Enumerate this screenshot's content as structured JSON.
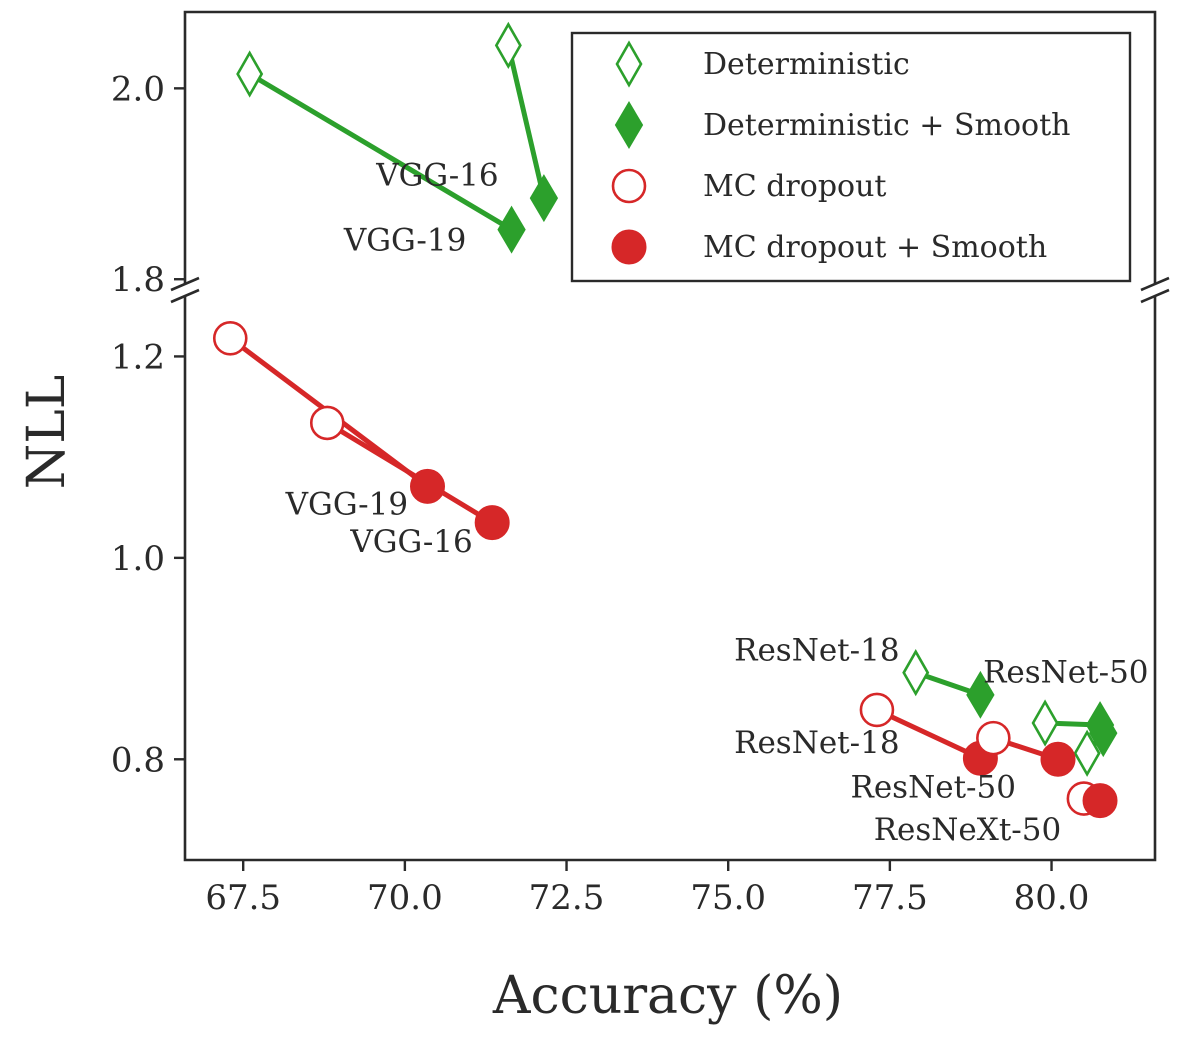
{
  "chart_data": {
    "type": "line",
    "xlabel": "Accuracy (%)",
    "ylabel": "NLL",
    "xlim": [
      66.6,
      81.6
    ],
    "ylim_top": [
      1.795,
      2.08
    ],
    "ylim_bottom": [
      0.7,
      1.26
    ],
    "xticks": [
      67.5,
      70.0,
      72.5,
      75.0,
      77.5,
      80.0
    ],
    "xtick_labels": [
      "67.5",
      "70.0",
      "72.5",
      "75.0",
      "77.5",
      "80.0"
    ],
    "yticks_top": [
      1.8,
      2.0
    ],
    "ytick_labels_top": [
      "1.8",
      "2.0"
    ],
    "yticks_bottom": [
      0.8,
      1.0,
      1.2
    ],
    "ytick_labels_bottom": [
      "0.8",
      "1.0",
      "1.2"
    ],
    "axis_break": true,
    "colors": {
      "deterministic": "#2ca02c",
      "mc_dropout": "#d62728"
    },
    "legend": {
      "placement": "top-right",
      "entries": [
        {
          "label": "Deterministic",
          "marker": "diamond-open",
          "color": "#2ca02c"
        },
        {
          "label": "Deterministic + Smooth",
          "marker": "diamond-filled",
          "color": "#2ca02c"
        },
        {
          "label": "MC dropout",
          "marker": "circle-open",
          "color": "#d62728"
        },
        {
          "label": "MC dropout + Smooth",
          "marker": "circle-filled",
          "color": "#d62728"
        }
      ]
    },
    "pairs": [
      {
        "method": "deterministic",
        "model": "VGG-16",
        "from": [
          71.6,
          2.045
        ],
        "to": [
          72.15,
          1.885
        ]
      },
      {
        "method": "deterministic",
        "model": "VGG-19",
        "from": [
          67.6,
          2.015
        ],
        "to": [
          71.65,
          1.852
        ]
      },
      {
        "method": "deterministic",
        "model": "ResNet-18",
        "from": [
          77.9,
          0.886
        ],
        "to": [
          78.9,
          0.864
        ]
      },
      {
        "method": "deterministic",
        "model": "ResNet-50",
        "from": [
          79.9,
          0.836
        ],
        "to": [
          80.75,
          0.834
        ]
      },
      {
        "method": "deterministic",
        "model": "ResNeXt-50",
        "from": [
          80.55,
          0.806
        ],
        "to": [
          80.8,
          0.826
        ]
      },
      {
        "method": "mc_dropout",
        "model": "VGG-19",
        "from": [
          67.3,
          1.218
        ],
        "to": [
          70.35,
          1.071
        ]
      },
      {
        "method": "mc_dropout",
        "model": "VGG-16",
        "from": [
          68.8,
          1.134
        ],
        "to": [
          71.35,
          1.035
        ]
      },
      {
        "method": "mc_dropout",
        "model": "ResNet-18",
        "from": [
          77.3,
          0.849
        ],
        "to": [
          78.9,
          0.801
        ]
      },
      {
        "method": "mc_dropout",
        "model": "ResNet-50",
        "from": [
          79.1,
          0.821
        ],
        "to": [
          80.1,
          0.8
        ]
      },
      {
        "method": "mc_dropout",
        "model": "ResNeXt-50",
        "from": [
          80.5,
          0.761
        ],
        "to": [
          80.75,
          0.759
        ]
      }
    ],
    "annotations": [
      {
        "text": "VGG-16",
        "x": 71.45,
        "y": 1.898,
        "align": "end",
        "panel": "top"
      },
      {
        "text": "VGG-19",
        "x": 70.95,
        "y": 1.83,
        "align": "end",
        "panel": "top"
      },
      {
        "text": "VGG-19",
        "x": 70.05,
        "y": 1.043,
        "align": "end",
        "panel": "bottom"
      },
      {
        "text": "VGG-16",
        "x": 71.05,
        "y": 1.006,
        "align": "end",
        "panel": "bottom"
      },
      {
        "text": "ResNet-18",
        "x": 77.65,
        "y": 0.898,
        "align": "end",
        "panel": "bottom"
      },
      {
        "text": "ResNet-50",
        "x": 81.5,
        "y": 0.876,
        "align": "end",
        "panel": "bottom"
      },
      {
        "text": "ResNet-18",
        "x": 77.65,
        "y": 0.806,
        "align": "end",
        "panel": "bottom"
      },
      {
        "text": "ResNet-50",
        "x": 79.45,
        "y": 0.762,
        "align": "end",
        "panel": "bottom"
      },
      {
        "text": "ResNeXt-50",
        "x": 80.15,
        "y": 0.72,
        "align": "end",
        "panel": "bottom"
      }
    ]
  }
}
